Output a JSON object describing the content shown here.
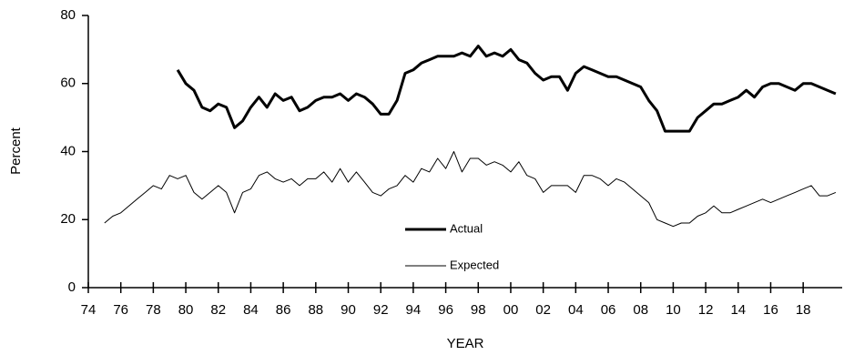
{
  "chart_data": {
    "type": "line",
    "x_label": "YEAR",
    "y_label": "Percent",
    "x": [
      1975,
      1975.5,
      1976,
      1976.5,
      1977,
      1977.5,
      1978,
      1978.5,
      1979,
      1979.5,
      1980,
      1980.5,
      1981,
      1981.5,
      1982,
      1982.5,
      1983,
      1983.5,
      1984,
      1984.5,
      1985,
      1985.5,
      1986,
      1986.5,
      1987,
      1987.5,
      1988,
      1988.5,
      1989,
      1989.5,
      1990,
      1990.5,
      1991,
      1991.5,
      1992,
      1992.5,
      1993,
      1993.5,
      1994,
      1994.5,
      1995,
      1995.5,
      1996,
      1996.5,
      1997,
      1997.5,
      1998,
      1998.5,
      1999,
      1999.5,
      2000,
      2000.5,
      2001,
      2001.5,
      2002,
      2002.5,
      2003,
      2003.5,
      2004,
      2004.5,
      2005,
      2005.5,
      2006,
      2006.5,
      2007,
      2007.5,
      2008,
      2008.5,
      2009,
      2009.5,
      2010,
      2010.5,
      2011,
      2011.5,
      2012,
      2012.5,
      2013,
      2013.5,
      2014,
      2014.5,
      2015,
      2015.5,
      2016,
      2016.5,
      2017,
      2017.5,
      2018,
      2018.5,
      2019,
      2019.5,
      2020
    ],
    "series": [
      {
        "name": "Actual",
        "color": "#000000",
        "width": 3,
        "values": [
          null,
          null,
          null,
          null,
          null,
          null,
          null,
          null,
          null,
          64,
          60,
          58,
          53,
          52,
          54,
          53,
          47,
          49,
          53,
          56,
          53,
          57,
          55,
          56,
          52,
          53,
          55,
          56,
          56,
          57,
          55,
          57,
          56,
          54,
          51,
          51,
          55,
          63,
          64,
          66,
          67,
          68,
          68,
          68,
          69,
          68,
          71,
          68,
          69,
          68,
          70,
          67,
          66,
          63,
          61,
          62,
          62,
          58,
          63,
          65,
          64,
          63,
          62,
          62,
          61,
          60,
          59,
          55,
          52,
          46,
          46,
          46,
          46,
          50,
          52,
          54,
          54,
          55,
          56,
          58,
          56,
          59,
          60,
          60,
          59,
          58,
          60,
          60,
          59,
          58,
          57
        ]
      },
      {
        "name": "Expected",
        "color": "#000000",
        "width": 1,
        "values": [
          19,
          21,
          22,
          24,
          26,
          28,
          30,
          29,
          33,
          32,
          33,
          28,
          26,
          28,
          30,
          28,
          22,
          28,
          29,
          33,
          34,
          32,
          31,
          32,
          30,
          32,
          32,
          34,
          31,
          35,
          31,
          34,
          31,
          28,
          27,
          29,
          30,
          33,
          31,
          35,
          34,
          38,
          35,
          40,
          34,
          38,
          38,
          36,
          37,
          36,
          34,
          37,
          33,
          32,
          28,
          30,
          30,
          30,
          28,
          33,
          33,
          32,
          30,
          32,
          31,
          29,
          27,
          25,
          20,
          19,
          18,
          19,
          19,
          21,
          22,
          24,
          22,
          22,
          23,
          24,
          25,
          26,
          25,
          26,
          27,
          28,
          29,
          30,
          27,
          27,
          28
        ]
      }
    ],
    "xlim": [
      1974,
      2020.4
    ],
    "ylim": [
      0,
      80
    ],
    "yticks": [
      0,
      20,
      40,
      60,
      80
    ],
    "xticks": [
      {
        "value": 1974,
        "label": "74"
      },
      {
        "value": 1976,
        "label": "76"
      },
      {
        "value": 1978,
        "label": "78"
      },
      {
        "value": 1980,
        "label": "80"
      },
      {
        "value": 1982,
        "label": "82"
      },
      {
        "value": 1984,
        "label": "84"
      },
      {
        "value": 1986,
        "label": "86"
      },
      {
        "value": 1988,
        "label": "88"
      },
      {
        "value": 1990,
        "label": "90"
      },
      {
        "value": 1992,
        "label": "92"
      },
      {
        "value": 1994,
        "label": "94"
      },
      {
        "value": 1996,
        "label": "96"
      },
      {
        "value": 1998,
        "label": "98"
      },
      {
        "value": 2000,
        "label": "00"
      },
      {
        "value": 2002,
        "label": "02"
      },
      {
        "value": 2004,
        "label": "04"
      },
      {
        "value": 2006,
        "label": "06"
      },
      {
        "value": 2008,
        "label": "08"
      },
      {
        "value": 2010,
        "label": "10"
      },
      {
        "value": 2012,
        "label": "12"
      },
      {
        "value": 2014,
        "label": "14"
      },
      {
        "value": 2016,
        "label": "16"
      },
      {
        "value": 2018,
        "label": "18"
      }
    ],
    "grid": false,
    "legend": "center"
  }
}
